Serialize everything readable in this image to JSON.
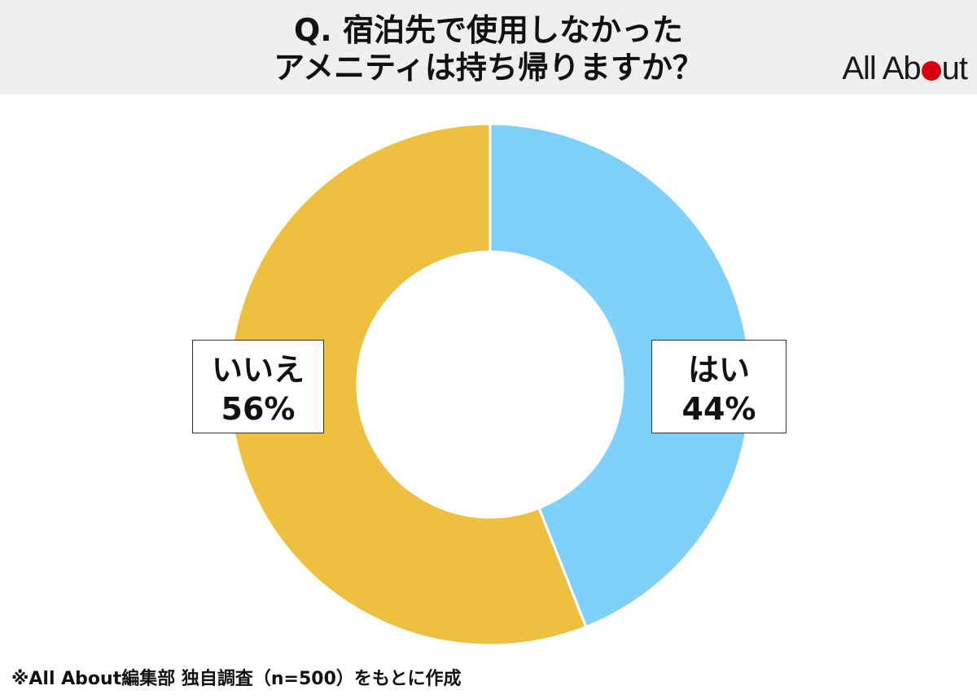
{
  "header": {
    "title_line1": "Q. 宿泊先で使用しなかった",
    "title_line2": "アメニティは持ち帰りますか？",
    "logo_left": "All Ab",
    "logo_right": "ut",
    "logo_dot_color": "#d7000f"
  },
  "chart_data": {
    "type": "pie",
    "donut": true,
    "categories": [
      "はい",
      "いいえ"
    ],
    "values": [
      44,
      56
    ],
    "unit": "%",
    "colors": [
      "#7fd0fb",
      "#edc13f"
    ],
    "start": "top",
    "direction": "clockwise",
    "labels": [
      {
        "name": "はい",
        "value_text": "44%"
      },
      {
        "name": "いいえ",
        "value_text": "56%"
      }
    ]
  },
  "footnote": "※All About編集部 独自調査（n=500）をもとに作成"
}
